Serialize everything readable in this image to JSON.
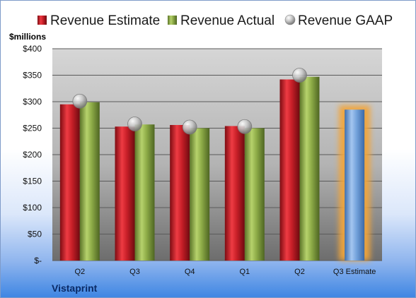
{
  "chart_data": {
    "type": "bar",
    "title": "",
    "company": "Vistaprint",
    "ylabel": "$millions",
    "ylim": [
      0,
      400
    ],
    "yticks": [
      0,
      50,
      100,
      150,
      200,
      250,
      300,
      350,
      400
    ],
    "ytick_labels": [
      "$-",
      "$50",
      "$100",
      "$150",
      "$200",
      "$250",
      "$300",
      "$350",
      "$400"
    ],
    "grid": true,
    "legend_position": "top",
    "categories": [
      "Q2",
      "Q3",
      "Q4",
      "Q1",
      "Q2",
      "Q3 Estimate"
    ],
    "series": [
      {
        "name": "Revenue Estimate",
        "kind": "bar",
        "color": "#c0202a",
        "values": [
          295,
          253,
          256,
          254,
          342,
          null
        ]
      },
      {
        "name": "Revenue Actual",
        "kind": "bar",
        "color": "#8fad4a",
        "values": [
          299,
          257,
          250,
          250,
          347,
          null
        ]
      },
      {
        "name": "Revenue GAAP",
        "kind": "marker",
        "color": "#b8b8b8",
        "values": [
          301,
          258,
          252,
          253,
          350,
          null
        ]
      }
    ],
    "forecast": {
      "category": "Q3 Estimate",
      "value": 285,
      "color": "#6f9fd8",
      "glow": "#f2a53a"
    }
  }
}
